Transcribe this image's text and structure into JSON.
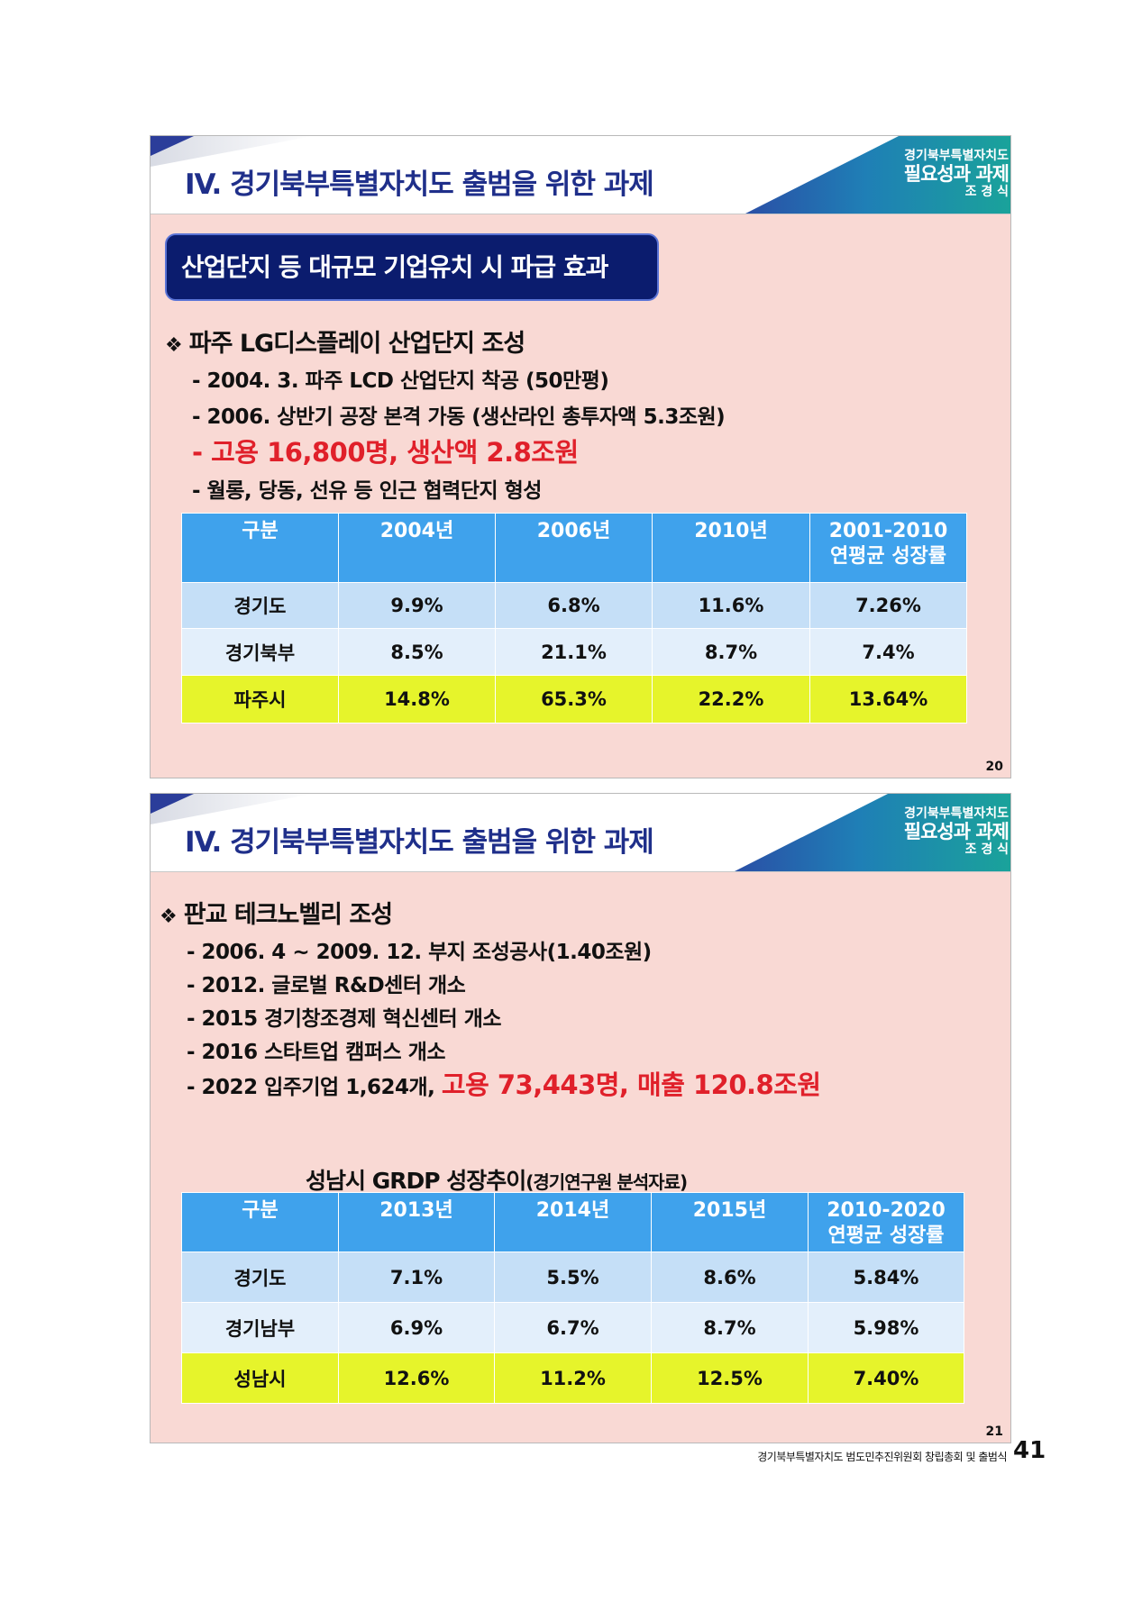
{
  "slide1": {
    "header_title": "IV. 경기북부특별자치도 출범을 위한 과제",
    "brand": {
      "line1": "경기북부특별자치도",
      "line2": "필요성과 과제",
      "line3": "조 경 식"
    },
    "badge": "산업단지 등 대규모 기업유치 시 파급 효과",
    "bullet_symbol": "❖",
    "heading": "파주 LG디스플레이 산업단지 조성",
    "bullets": {
      "b1": "- 2004. 3. 파주 LCD 산업단지 착공 (50만평)",
      "b2": "- 2006. 상반기 공장 본격 가동 (생산라인 총투자액 5.3조원)",
      "b3_dash": "- ",
      "b3_red": "고용 16,800명, 생산액 2.8조원",
      "b4": "- 월롱, 당동, 선유 등 인근 협력단지 형성"
    },
    "table": {
      "headers": [
        "구분",
        "2004년",
        "2006년",
        "2010년",
        "2001-2010\n연평균 성장률"
      ],
      "rows": [
        [
          "경기도",
          "9.9%",
          "6.8%",
          "11.6%",
          "7.26%"
        ],
        [
          "경기북부",
          "8.5%",
          "21.1%",
          "8.7%",
          "7.4%"
        ],
        [
          "파주시",
          "14.8%",
          "65.3%",
          "22.2%",
          "13.64%"
        ]
      ]
    },
    "page_number": "20"
  },
  "slide2": {
    "header_title": "IV. 경기북부특별자치도 출범을 위한 과제",
    "brand": {
      "line1": "경기북부특별자치도",
      "line2": "필요성과 과제",
      "line3": "조 경 식"
    },
    "bullet_symbol": "❖",
    "heading": "판교 테크노벨리 조성",
    "bullets": {
      "b1": "- 2006. 4 ~ 2009. 12. 부지 조성공사(1.40조원)",
      "b2": "- 2012. 글로벌 R&D센터 개소",
      "b3": "- 2015 경기창조경제 혁신센터 개소",
      "b4": "- 2016 스타트업 캠퍼스 개소",
      "b5_prefix": "- 2022 입주기업 1,624개, ",
      "b5_red": "고용 73,443명, 매출 120.8조원"
    },
    "caption_main": "성남시 GRDP 성장추이",
    "caption_note": "(경기연구원 분석자료)",
    "table": {
      "headers": [
        "구분",
        "2013년",
        "2014년",
        "2015년",
        "2010-2020\n연평균 성장률"
      ],
      "rows": [
        [
          "경기도",
          "7.1%",
          "5.5%",
          "8.6%",
          "5.84%"
        ],
        [
          "경기남부",
          "6.9%",
          "6.7%",
          "8.7%",
          "5.98%"
        ],
        [
          "성남시",
          "12.6%",
          "11.2%",
          "12.5%",
          "7.40%"
        ]
      ]
    },
    "page_number": "21"
  },
  "footer": {
    "text": "경기북부특별자치도 범도민추진위원회 창립총회 및 출범식",
    "page": "41"
  },
  "colors": {
    "slide_bg": "#f9d9d4",
    "title_blue": "#1f2f8a",
    "badge_navy": "#0b1c6e",
    "table_header": "#3fa2ec",
    "row_light_blue": "#c5dff7",
    "row_pale_blue": "#e3effb",
    "row_yellow": "#e6f42b",
    "highlight_red": "#e0202a"
  }
}
